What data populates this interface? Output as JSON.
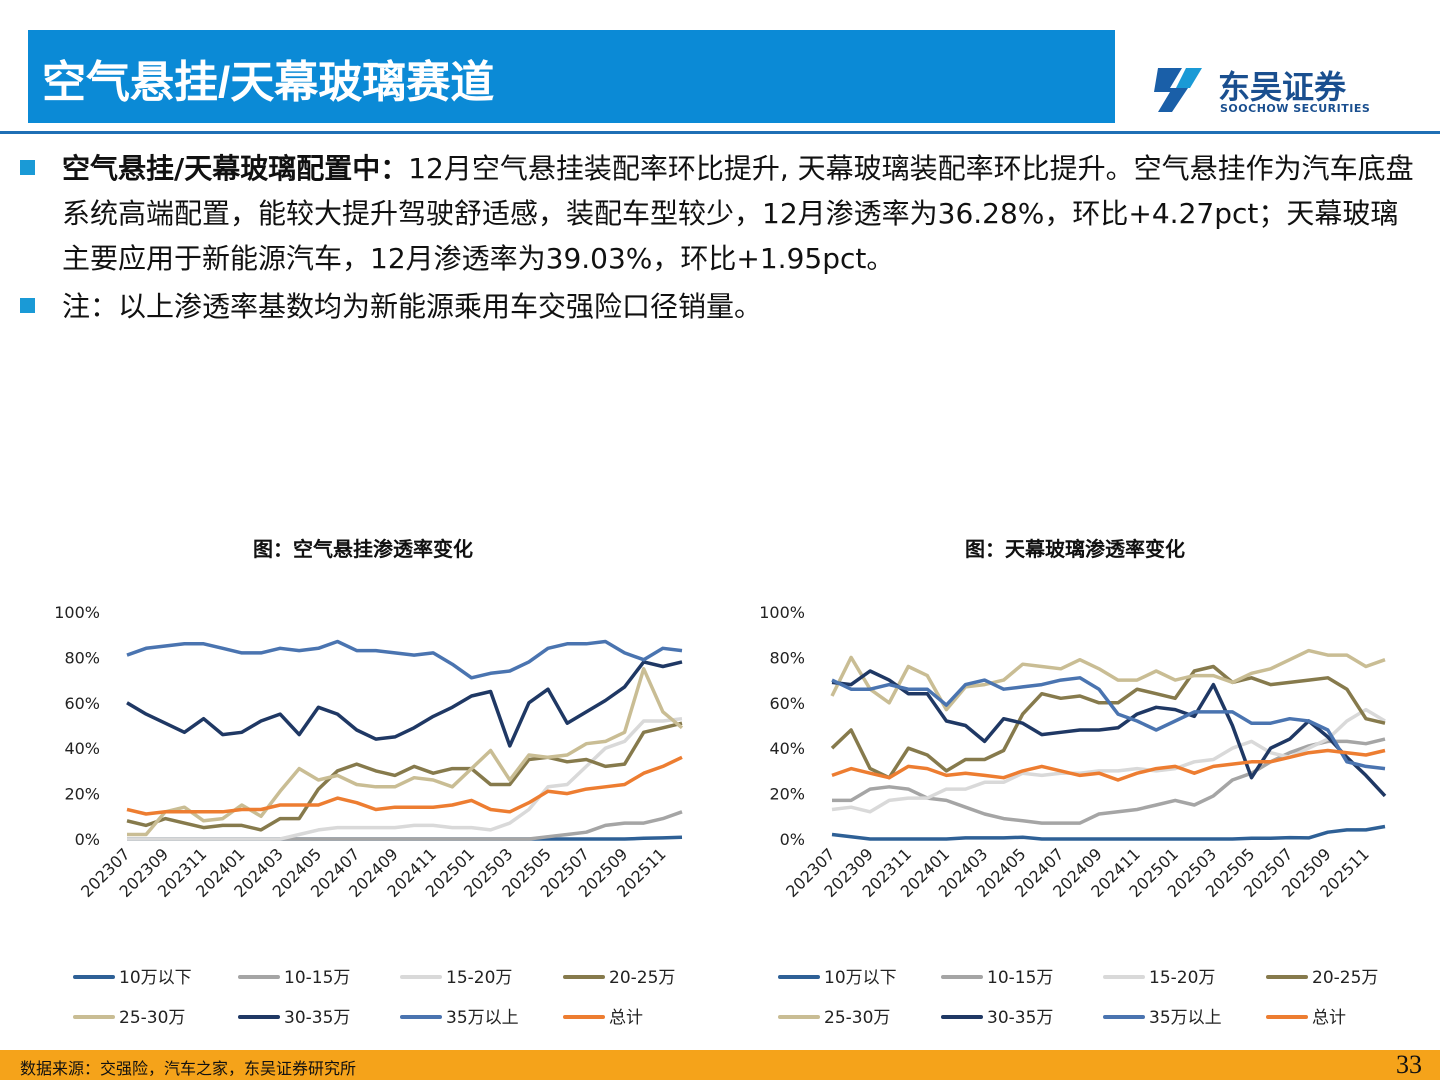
{
  "header": {
    "title": "空气悬挂/天幕玻璃赛道",
    "logo_cn": "东吴证券",
    "logo_en": "SOOCHOW SECURITIES"
  },
  "bullets": [
    {
      "bold": "空气悬挂/天幕玻璃配置中：",
      "text": "12月空气悬挂装配率环比提升, 天幕玻璃装配率环比提升。空气悬挂作为汽车底盘系统高端配置，能较大提升驾驶舒适感，装配车型较少，12月渗透率为36.28%，环比+4.27pct；天幕玻璃主要应用于新能源汽车，12月渗透率为39.03%，环比+1.95pct。"
    },
    {
      "text": "注：以上渗透率基数均为新能源乘用车交强险口径销量。"
    }
  ],
  "footer": {
    "source": "数据来源：交强险，汽车之家，东吴证券研究所",
    "page": "33"
  },
  "chart_data": [
    {
      "type": "line",
      "title": "图：空气悬挂渗透率变化",
      "categories": [
        "202307",
        null,
        "202309",
        null,
        "202311",
        null,
        "202401",
        null,
        "202403",
        null,
        "202405",
        null,
        "202407",
        null,
        "202409",
        null,
        "202411",
        null,
        "202501",
        null,
        "202503",
        null,
        "202505",
        null,
        "202507",
        null,
        "202509",
        null,
        "202511",
        null
      ],
      "ylim": [
        0,
        100
      ],
      "yticks": [
        {
          "value": 0,
          "label": "0%"
        },
        {
          "value": 20,
          "label": "20%"
        },
        {
          "value": 40,
          "label": "40%"
        },
        {
          "value": 60,
          "label": "60%"
        },
        {
          "value": 80,
          "label": "80%"
        },
        {
          "value": 100,
          "label": "100%"
        }
      ],
      "grid": false,
      "series": [
        {
          "name": "10万以下",
          "color": "#2e6096",
          "values": [
            0,
            0,
            0,
            0,
            0,
            0,
            0,
            0,
            0,
            0,
            0,
            0,
            0,
            0,
            0,
            0,
            0,
            0,
            0,
            0,
            0,
            0,
            0,
            0,
            0,
            0,
            0,
            0.3,
            0.5,
            0.8
          ]
        },
        {
          "name": "10-15万",
          "color": "#a5a5a5",
          "values": [
            0,
            0,
            0,
            0,
            0,
            0,
            0,
            0,
            0,
            0,
            0,
            0,
            0,
            0,
            0,
            0,
            0,
            0,
            0,
            0,
            0,
            0,
            1,
            2,
            3,
            6,
            7,
            7,
            9,
            12
          ]
        },
        {
          "name": "15-20万",
          "color": "#d9d9d9",
          "values": [
            0,
            0,
            0,
            0,
            0,
            0,
            0,
            0,
            0,
            2,
            4,
            5,
            5,
            5,
            5,
            6,
            6,
            5,
            5,
            4,
            7,
            13,
            23,
            24,
            32,
            40,
            43,
            52,
            52,
            53
          ]
        },
        {
          "name": "20-25万",
          "color": "#867a4c",
          "values": [
            8,
            6,
            9,
            7,
            5,
            6,
            6,
            4,
            9,
            9,
            22,
            30,
            33,
            30,
            28,
            32,
            29,
            31,
            31,
            24,
            24,
            35,
            36,
            34,
            35,
            32,
            33,
            47,
            49,
            51
          ]
        },
        {
          "name": "25-30万",
          "color": "#c9bd94",
          "values": [
            2,
            2,
            12,
            14,
            8,
            9,
            15,
            10,
            21,
            31,
            26,
            28,
            24,
            23,
            23,
            27,
            26,
            23,
            31,
            39,
            26,
            37,
            36,
            37,
            42,
            43,
            47,
            75,
            56,
            49
          ]
        },
        {
          "name": "30-35万",
          "color": "#1f3864",
          "values": [
            60,
            55,
            51,
            47,
            53,
            46,
            47,
            52,
            55,
            46,
            58,
            55,
            48,
            44,
            45,
            49,
            54,
            58,
            63,
            65,
            41,
            60,
            66,
            51,
            56,
            61,
            67,
            78,
            76,
            78
          ]
        },
        {
          "name": "35万以上",
          "color": "#4a74b0",
          "values": [
            81,
            84,
            85,
            86,
            86,
            84,
            82,
            82,
            84,
            83,
            84,
            87,
            83,
            83,
            82,
            81,
            82,
            77,
            71,
            73,
            74,
            78,
            84,
            86,
            86,
            87,
            82,
            79,
            84,
            83
          ]
        },
        {
          "name": "总计",
          "color": "#ed7d31",
          "values": [
            13,
            11,
            12,
            12,
            12,
            12,
            13,
            13,
            15,
            15,
            15,
            18,
            16,
            13,
            14,
            14,
            14,
            15,
            17,
            13,
            12,
            16,
            21,
            20,
            22,
            23,
            24,
            29,
            32,
            36
          ]
        }
      ]
    },
    {
      "type": "line",
      "title": "图：天幕玻璃渗透率变化",
      "categories": [
        "202307",
        null,
        "202309",
        null,
        "202311",
        null,
        "202401",
        null,
        "202403",
        null,
        "202405",
        null,
        "202407",
        null,
        "202409",
        null,
        "202411",
        null,
        "202501",
        null,
        "202503",
        null,
        "202505",
        null,
        "202507",
        null,
        "202509",
        null,
        "202511",
        null
      ],
      "ylim": [
        0,
        100
      ],
      "yticks": [
        {
          "value": 0,
          "label": "0%"
        },
        {
          "value": 20,
          "label": "20%"
        },
        {
          "value": 40,
          "label": "40%"
        },
        {
          "value": 60,
          "label": "60%"
        },
        {
          "value": 80,
          "label": "80%"
        },
        {
          "value": 100,
          "label": "100%"
        }
      ],
      "grid": false,
      "series": [
        {
          "name": "10万以下",
          "color": "#2e6096",
          "values": [
            2,
            1,
            0,
            0,
            0,
            0,
            0,
            0.5,
            0.5,
            0.5,
            0.8,
            0,
            0,
            0,
            0,
            0,
            0,
            0,
            0,
            0,
            0,
            0,
            0.3,
            0.3,
            0.6,
            0.5,
            3,
            4,
            4,
            5.5
          ]
        },
        {
          "name": "10-15万",
          "color": "#a5a5a5",
          "values": [
            17,
            17,
            22,
            23,
            22,
            18,
            17,
            14,
            11,
            9,
            8,
            7,
            7,
            7,
            11,
            12,
            13,
            15,
            17,
            15,
            19,
            26,
            29,
            34,
            38,
            41,
            43,
            43,
            42,
            44
          ]
        },
        {
          "name": "15-20万",
          "color": "#d9d9d9",
          "values": [
            13,
            14,
            12,
            17,
            18,
            18,
            22,
            22,
            25,
            25,
            29,
            28,
            29,
            29,
            30,
            30,
            31,
            30,
            31,
            34,
            35,
            40,
            43,
            38,
            36,
            40,
            44,
            52,
            57,
            52
          ]
        },
        {
          "name": "20-25万",
          "color": "#867a4c",
          "values": [
            40,
            48,
            31,
            27,
            40,
            37,
            30,
            35,
            35,
            39,
            55,
            64,
            62,
            63,
            60,
            60,
            66,
            64,
            62,
            74,
            76,
            69,
            71,
            68,
            69,
            70,
            71,
            66,
            53,
            51
          ]
        },
        {
          "name": "25-30万",
          "color": "#c9bd94",
          "values": [
            63,
            80,
            66,
            60,
            76,
            72,
            57,
            67,
            68,
            70,
            77,
            76,
            75,
            79,
            75,
            70,
            70,
            74,
            70,
            72,
            72,
            69,
            73,
            75,
            79,
            83,
            81,
            81,
            76,
            79
          ]
        },
        {
          "name": "30-35万",
          "color": "#1f3864",
          "values": [
            69,
            68,
            74,
            70,
            64,
            64,
            52,
            50,
            43,
            53,
            51,
            46,
            47,
            48,
            48,
            49,
            55,
            58,
            57,
            54,
            68,
            50,
            27,
            40,
            44,
            52,
            45,
            36,
            28,
            19
          ]
        },
        {
          "name": "35万以上",
          "color": "#4a74b0",
          "values": [
            70,
            66,
            66,
            68,
            66,
            66,
            59,
            68,
            70,
            66,
            67,
            68,
            70,
            71,
            66,
            55,
            52,
            48,
            52,
            56,
            56,
            56,
            51,
            51,
            53,
            52,
            48,
            34,
            32,
            31
          ]
        },
        {
          "name": "总计",
          "color": "#ed7d31",
          "values": [
            28,
            31,
            29,
            27,
            32,
            31,
            28,
            29,
            28,
            27,
            30,
            32,
            30,
            28,
            29,
            26,
            29,
            31,
            32,
            29,
            32,
            33,
            34,
            34,
            36,
            38,
            39,
            38,
            37,
            39
          ]
        }
      ]
    }
  ]
}
